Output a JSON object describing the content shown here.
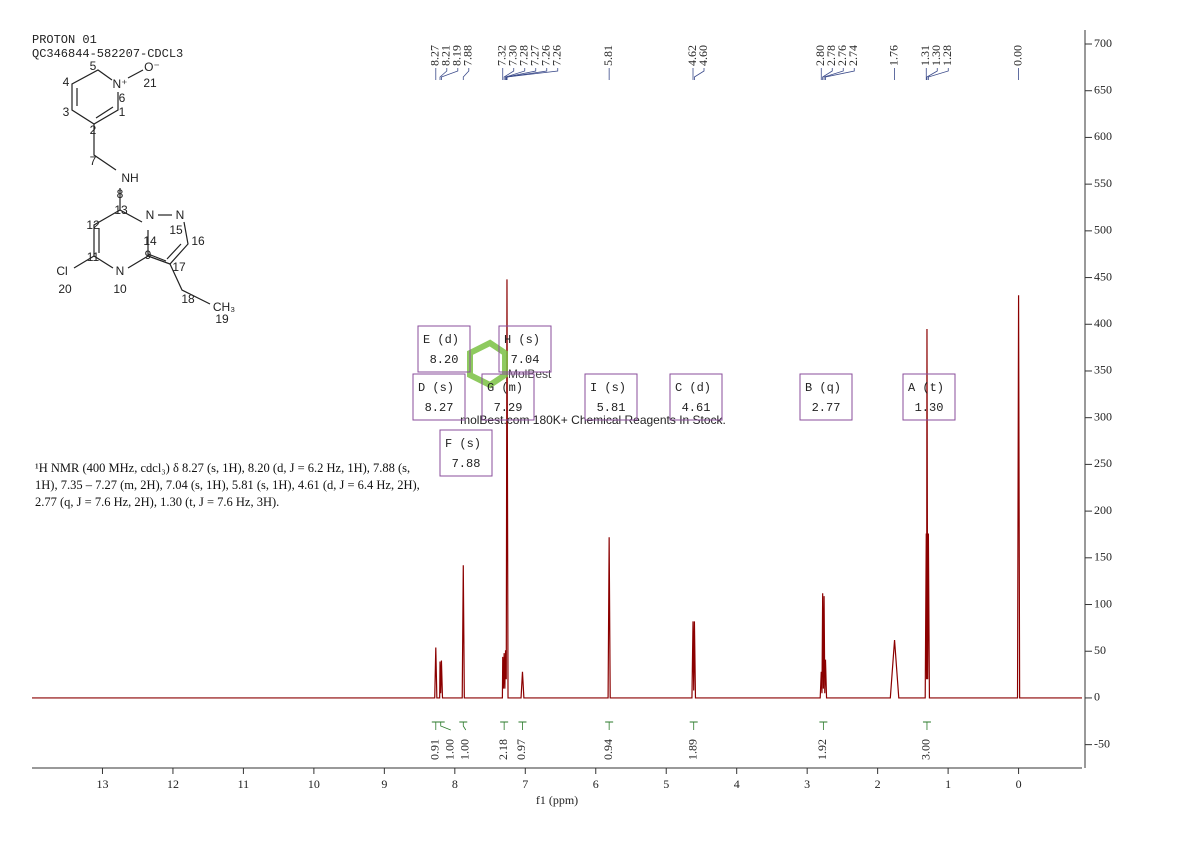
{
  "chart_data": {
    "type": "line",
    "title": "PROTON 01",
    "subtitle": "QC346844-582207-CDCL3",
    "x_label": "f1 (ppm)",
    "xlim": [
      14,
      -0.9
    ],
    "xticks": [
      13,
      12,
      11,
      10,
      9,
      8,
      7,
      6,
      5,
      4,
      3,
      2,
      1,
      0
    ],
    "ylim": [
      -75,
      715
    ],
    "yticks": [
      -50,
      0,
      50,
      100,
      150,
      200,
      250,
      300,
      350,
      400,
      450,
      500,
      550,
      600,
      650,
      700
    ],
    "series": [
      {
        "name": "spectrum",
        "color": "#8b0000",
        "x": [
          14,
          8.285,
          8.27,
          8.255,
          8.215,
          8.21,
          8.2,
          8.19,
          8.175,
          7.895,
          7.88,
          7.865,
          7.325,
          7.32,
          7.31,
          7.3,
          7.29,
          7.28,
          7.27,
          7.26,
          7.245,
          7.06,
          7.04,
          7.02,
          5.825,
          5.81,
          5.795,
          4.635,
          4.62,
          4.61,
          4.6,
          4.585,
          2.815,
          2.8,
          2.79,
          2.78,
          2.77,
          2.76,
          2.75,
          2.74,
          2.725,
          1.82,
          1.76,
          1.7,
          1.325,
          1.31,
          1.305,
          1.3,
          1.29,
          1.28,
          1.265,
          0.015,
          0,
          -0.015,
          -0.9
        ],
        "values": [
          0,
          0,
          54,
          0,
          0,
          39,
          5,
          40,
          0,
          0,
          142,
          0,
          0,
          44,
          10,
          48,
          10,
          51,
          20,
          448,
          0,
          0,
          28,
          0,
          0,
          172,
          0,
          0,
          82,
          8,
          82,
          0,
          0,
          28,
          5,
          112,
          10,
          109,
          5,
          41,
          0,
          0,
          62,
          0,
          0,
          176,
          20,
          395,
          20,
          176,
          0,
          0,
          431,
          0,
          0
        ]
      }
    ],
    "peak_labels": [
      {
        "value": 8.27,
        "label": "8.27"
      },
      {
        "value": 8.21,
        "label": "8.21"
      },
      {
        "value": 8.19,
        "label": "8.19"
      },
      {
        "value": 7.88,
        "label": "7.88"
      },
      {
        "value": 7.32,
        "label": "7.32"
      },
      {
        "value": 7.3,
        "label": "7.30"
      },
      {
        "value": 7.28,
        "label": "7.28"
      },
      {
        "value": 7.27,
        "label": "7.27"
      },
      {
        "value": 7.26,
        "label": "7.26"
      },
      {
        "value": 7.26,
        "label": "7.26"
      },
      {
        "value": 5.81,
        "label": "5.81"
      },
      {
        "value": 4.62,
        "label": "4.62"
      },
      {
        "value": 4.6,
        "label": "4.60"
      },
      {
        "value": 2.8,
        "label": "2.80"
      },
      {
        "value": 2.78,
        "label": "2.78"
      },
      {
        "value": 2.76,
        "label": "2.76"
      },
      {
        "value": 2.74,
        "label": "2.74"
      },
      {
        "value": 1.76,
        "label": "1.76"
      },
      {
        "value": 1.31,
        "label": "1.31"
      },
      {
        "value": 1.3,
        "label": "1.30"
      },
      {
        "value": 1.28,
        "label": "1.28"
      },
      {
        "value": 0,
        "label": "0.00"
      }
    ],
    "integrals": [
      {
        "value": 8.27,
        "label": "0.91"
      },
      {
        "value": 8.2,
        "label": "1.00"
      },
      {
        "value": 7.88,
        "label": "1.00"
      },
      {
        "value": 7.3,
        "label": "2.18"
      },
      {
        "value": 7.04,
        "label": "0.97"
      },
      {
        "value": 5.81,
        "label": "0.94"
      },
      {
        "value": 4.61,
        "label": "1.89"
      },
      {
        "value": 2.77,
        "label": "1.92"
      },
      {
        "value": 1.3,
        "label": "3.00"
      }
    ],
    "multiplets": [
      {
        "name": "E (d)",
        "shift": "8.20"
      },
      {
        "name": "H (s)",
        "shift": "7.04"
      },
      {
        "name": "D (s)",
        "shift": "8.27"
      },
      {
        "name": "G (m)",
        "shift": "7.29"
      },
      {
        "name": "I (s)",
        "shift": "5.81"
      },
      {
        "name": "C (d)",
        "shift": "4.61"
      },
      {
        "name": "B (q)",
        "shift": "2.77"
      },
      {
        "name": "A (t)",
        "shift": "1.30"
      },
      {
        "name": "F (s)",
        "shift": "7.88"
      }
    ],
    "description": "¹H NMR (400 MHz, cdcl₃) δ 8.27 (s, 1H), 8.20 (d, J = 6.2 Hz, 1H), 7.88 (s, 1H), 7.35 – 7.27 (m, 2H), 7.04 (s, 1H), 5.81 (s, 1H), 4.61 (d, J = 6.4 Hz, 2H), 2.77 (q, J = 7.6 Hz, 2H), 1.30 (t, J = 7.6 Hz, 3H).",
    "watermark": {
      "logo": "MolBest",
      "tagline": "molBest.com 180K+ Chemical Reagents In Stock."
    },
    "molecule": {
      "atoms": [
        "N⁺",
        "O⁻",
        "NH",
        "N",
        "N",
        "N",
        "Cl",
        "CH₃"
      ],
      "numbers": [
        "1",
        "2",
        "3",
        "4",
        "5",
        "6",
        "7",
        "8",
        "9",
        "10",
        "11",
        "12",
        "13",
        "14",
        "15",
        "16",
        "17",
        "18",
        "19",
        "20",
        "21"
      ]
    }
  }
}
